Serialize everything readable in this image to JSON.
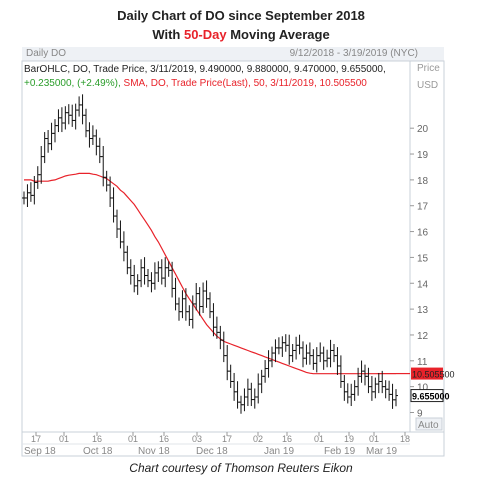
{
  "title_line1": "Daily Chart of DO since September 2018",
  "title_line2_pre": "With ",
  "title_line2_hl": "50-Day",
  "title_line2_post": " Moving Average",
  "header": {
    "left": "Daily DO",
    "right": "9/12/2018 - 3/19/2019 (NYC)",
    "price": "Price",
    "usd": "USD"
  },
  "legend": {
    "ohlc": "BarOHLC, DO, Trade Price, 3/11/2019, 9.490000, 9.880000, 9.470000, 9.655000,",
    "change": "+0.235000, (+2.49%),",
    "sma": "SMA, DO, Trade Price(Last), 50, 3/11/2019, 10.505500"
  },
  "caption": "Chart courtesy of Thomson Reuters Eikon",
  "auto_label": "Auto",
  "colors": {
    "price_bars": "#111111",
    "sma": "#e8222a",
    "sma_tag": "#e8222a",
    "price_tag": "#ffffff",
    "accent": "#e8222a"
  },
  "chart_data": {
    "type": "ohlc",
    "ylim": [
      8.4,
      21.4
    ],
    "yticks": [
      9,
      10,
      11,
      12,
      13,
      14,
      15,
      16,
      17,
      18,
      19,
      20
    ],
    "x_day_ticks": [
      "17",
      "01",
      "16",
      "01",
      "16",
      "03",
      "17",
      "02",
      "16",
      "01",
      "19",
      "01",
      "18"
    ],
    "x_month_labels": [
      "Sep 18",
      "Oct 18",
      "Nov 18",
      "Dec 18",
      "Jan 19",
      "Feb 19",
      "Mar 19"
    ],
    "last_price_label": "9.655000",
    "sma_label": "10.505500",
    "series": [
      {
        "name": "BarOHLC, DO, Trade Price",
        "values": [
          17.3,
          17.5,
          17.4,
          17.9,
          18.2,
          18.9,
          19.6,
          19.4,
          19.8,
          20.1,
          20.4,
          20.2,
          20.6,
          20.5,
          20.3,
          20.7,
          20.9,
          20.5,
          19.9,
          19.6,
          19.7,
          19.3,
          18.9,
          18.1,
          17.8,
          17.3,
          16.6,
          16.1,
          15.6,
          15.2,
          14.6,
          14.3,
          13.9,
          14.1,
          14.6,
          14.3,
          14.1,
          14.0,
          14.4,
          14.6,
          14.2,
          14.6,
          14.5,
          13.8,
          13.2,
          12.9,
          13.4,
          12.9,
          12.6,
          13.2,
          13.6,
          13.1,
          13.7,
          13.4,
          12.9,
          12.3,
          12.1,
          11.8,
          11.2,
          10.6,
          10.2,
          9.8,
          9.4,
          9.3,
          9.6,
          9.9,
          9.5,
          9.6,
          10.1,
          10.4,
          10.7,
          11.0,
          11.3,
          11.5,
          11.5,
          11.7,
          11.6,
          11.2,
          11.4,
          11.6,
          11.5,
          11.1,
          11.3,
          11.2,
          10.9,
          11.2,
          11.3,
          11.0,
          11.1,
          11.4,
          11.2,
          10.8,
          10.2,
          9.8,
          9.6,
          9.7,
          10.0,
          10.4,
          10.6,
          10.4,
          10.0,
          9.8,
          10.1,
          10.2,
          10.0,
          9.9,
          9.7,
          9.49,
          9.655
        ]
      },
      {
        "name": "SMA, DO, Trade Price(Last), 50",
        "values": [
          18.0,
          18.0,
          18.0,
          17.95,
          17.95,
          17.95,
          17.95,
          17.95,
          17.98,
          18.0,
          18.05,
          18.1,
          18.15,
          18.18,
          18.2,
          18.22,
          18.25,
          18.25,
          18.25,
          18.25,
          18.22,
          18.2,
          18.15,
          18.1,
          18.05,
          17.95,
          17.85,
          17.75,
          17.6,
          17.5,
          17.35,
          17.2,
          17.05,
          16.85,
          16.65,
          16.45,
          16.25,
          16.05,
          15.8,
          15.6,
          15.35,
          15.1,
          14.85,
          14.6,
          14.35,
          14.1,
          13.85,
          13.6,
          13.4,
          13.2,
          13.0,
          12.8,
          12.6,
          12.4,
          12.25,
          12.1,
          11.95,
          11.85,
          11.75,
          11.7,
          11.65,
          11.6,
          11.55,
          11.5,
          11.45,
          11.4,
          11.35,
          11.3,
          11.25,
          11.2,
          11.15,
          11.1,
          11.05,
          11.0,
          10.95,
          10.9,
          10.85,
          10.8,
          10.75,
          10.7,
          10.65,
          10.6,
          10.55,
          10.52,
          10.5,
          10.5,
          10.5,
          10.5,
          10.5,
          10.5,
          10.5,
          10.5,
          10.5,
          10.5,
          10.5,
          10.5,
          10.5,
          10.5,
          10.5,
          10.5,
          10.5,
          10.5,
          10.5,
          10.505,
          10.505,
          10.505,
          10.505,
          10.505,
          10.5055
        ]
      }
    ]
  }
}
